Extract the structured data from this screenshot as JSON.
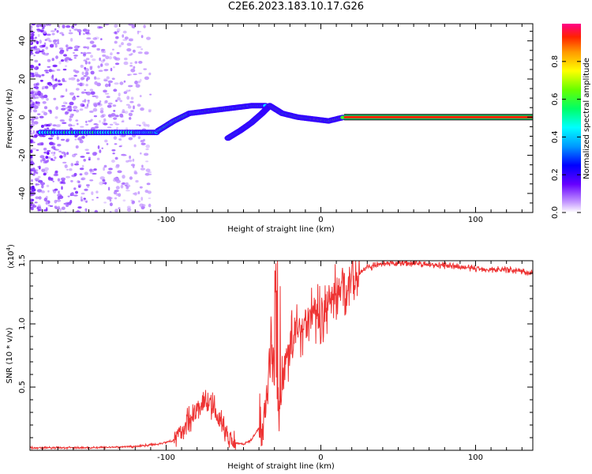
{
  "title": "C2E6.2023.183.10.17.G26",
  "colors": {
    "snr_line": "#ee3333",
    "axis": "#000000"
  },
  "chart_data": [
    {
      "type": "heatmap",
      "name": "spectrogram",
      "xlabel": "Height of straight line (km)",
      "ylabel": "Frequency (Hz)",
      "xlim": [
        -188,
        137
      ],
      "ylim": [
        -50,
        49
      ],
      "xticks": [
        -100,
        0,
        100
      ],
      "yticks": [
        -40,
        -20,
        0,
        20,
        40
      ],
      "colorbar": {
        "label": "Normalized spectral amplitude",
        "range": [
          0,
          1
        ],
        "ticks": [
          "0.0",
          "0.2",
          "0.4",
          "0.6",
          "0.8"
        ],
        "tick_values": [
          0.0,
          0.2,
          0.4,
          0.6,
          0.8
        ]
      },
      "traces": [
        {
          "segment": "flat-low",
          "x": [
            -181,
            -160,
            -140,
            -120,
            -105
          ],
          "y": [
            -8,
            -8,
            -8,
            -8,
            -8
          ],
          "amplitude": 0.45
        },
        {
          "segment": "rising",
          "x": [
            -105,
            -95,
            -85,
            -75,
            -65,
            -55,
            -45,
            -35
          ],
          "y": [
            -7,
            -2,
            2,
            3,
            4,
            5,
            6,
            6
          ],
          "amplitude": 0.5
        },
        {
          "segment": "lower-branch",
          "x": [
            -60,
            -52,
            -45,
            -38,
            -33
          ],
          "y": [
            -11,
            -7,
            -3,
            2,
            6
          ],
          "amplitude": 0.5
        },
        {
          "segment": "descending",
          "x": [
            -33,
            -25,
            -15,
            -5,
            5,
            15
          ],
          "y": [
            6,
            2,
            0,
            -1,
            -2,
            0
          ],
          "amplitude": 0.6
        },
        {
          "segment": "carrier",
          "x": [
            15,
            40,
            70,
            100,
            137
          ],
          "y": [
            0,
            0,
            0,
            0,
            0
          ],
          "amplitude": 0.9
        }
      ]
    },
    {
      "type": "line",
      "name": "snr",
      "xlabel": "Height of straight line (km)",
      "ylabel": "SNR (10 * v/v)",
      "y_multiplier_label": "(x10",
      "y_multiplier_exp": "4",
      "y_multiplier_close": ")",
      "xlim": [
        -188,
        137
      ],
      "ylim": [
        0,
        1.5
      ],
      "xticks": [
        -100,
        0,
        100
      ],
      "yticks": [
        0.5,
        1.0,
        1.5
      ],
      "ytick_labels": [
        "0.5",
        "1.0",
        "1.5"
      ],
      "x": [
        -188,
        -150,
        -120,
        -105,
        -95,
        -90,
        -85,
        -80,
        -75,
        -70,
        -65,
        -60,
        -55,
        -50,
        -45,
        -40,
        -35,
        -32,
        -30,
        -28,
        -25,
        -20,
        -15,
        -10,
        -5,
        0,
        5,
        10,
        15,
        20,
        25,
        30,
        40,
        50,
        60,
        70,
        80,
        90,
        100,
        110,
        120,
        130,
        137
      ],
      "y": [
        0.02,
        0.02,
        0.03,
        0.05,
        0.08,
        0.15,
        0.25,
        0.33,
        0.38,
        0.35,
        0.22,
        0.12,
        0.06,
        0.05,
        0.08,
        0.18,
        0.4,
        0.9,
        0.6,
        0.3,
        0.55,
        0.85,
        0.95,
        1.0,
        1.1,
        1.05,
        1.15,
        1.25,
        1.3,
        1.35,
        1.4,
        1.45,
        1.47,
        1.48,
        1.48,
        1.47,
        1.46,
        1.45,
        1.44,
        1.43,
        1.43,
        1.42,
        1.4
      ]
    }
  ]
}
